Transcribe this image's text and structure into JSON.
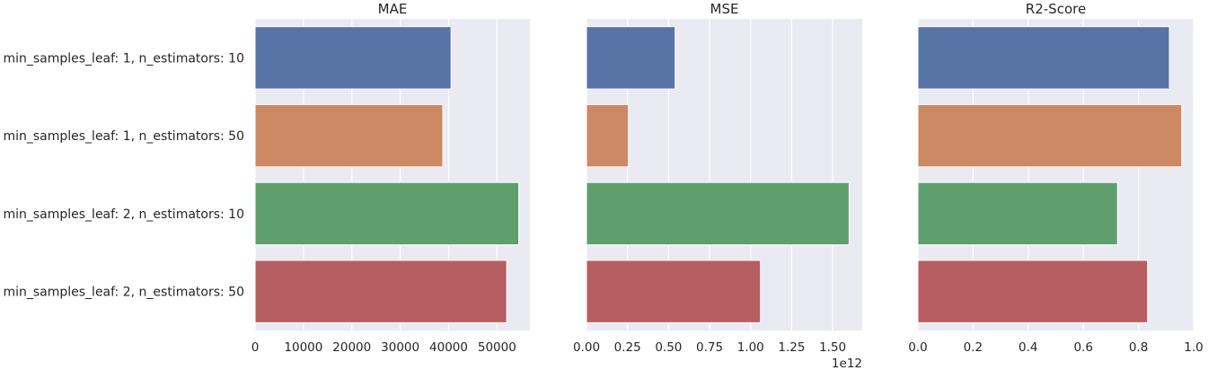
{
  "chart_data": [
    {
      "type": "bar",
      "orientation": "horizontal",
      "title": "MAE",
      "xlabel": "",
      "ylabel": "",
      "categories": [
        "min_samples_leaf: 1, n_estimators: 10",
        "min_samples_leaf: 1, n_estimators: 50",
        "min_samples_leaf: 2, n_estimators: 10",
        "min_samples_leaf: 2, n_estimators: 50"
      ],
      "values": [
        40500,
        38800,
        54500,
        52000
      ],
      "xlim": [
        0,
        56800
      ],
      "xticks": [
        0,
        10000,
        20000,
        30000,
        40000,
        50000
      ],
      "xtick_labels": [
        "0",
        "10000",
        "20000",
        "30000",
        "40000",
        "50000"
      ],
      "offset_text": "",
      "grid": true
    },
    {
      "type": "bar",
      "orientation": "horizontal",
      "title": "MSE",
      "xlabel": "",
      "ylabel": "",
      "categories": [
        "min_samples_leaf: 1, n_estimators: 10",
        "min_samples_leaf: 1, n_estimators: 50",
        "min_samples_leaf: 2, n_estimators: 10",
        "min_samples_leaf: 2, n_estimators: 50"
      ],
      "values": [
        540000000000,
        255000000000,
        1600000000000,
        1060000000000
      ],
      "xlim": [
        0,
        1680000000000
      ],
      "xticks": [
        0,
        250000000000,
        500000000000,
        750000000000,
        1000000000000,
        1250000000000,
        1500000000000
      ],
      "xtick_labels": [
        "0.00",
        "0.25",
        "0.50",
        "0.75",
        "1.00",
        "1.25",
        "1.50"
      ],
      "offset_text": "1e12",
      "grid": true
    },
    {
      "type": "bar",
      "orientation": "horizontal",
      "title": "R2-Score",
      "xlabel": "",
      "ylabel": "",
      "categories": [
        "min_samples_leaf: 1, n_estimators: 10",
        "min_samples_leaf: 1, n_estimators: 50",
        "min_samples_leaf: 2, n_estimators: 10",
        "min_samples_leaf: 2, n_estimators: 50"
      ],
      "values": [
        0.912,
        0.957,
        0.724,
        0.833
      ],
      "xlim": [
        0,
        1.0
      ],
      "xticks": [
        0,
        0.2,
        0.4,
        0.6,
        0.8,
        1.0
      ],
      "xtick_labels": [
        "0.0",
        "0.2",
        "0.4",
        "0.6",
        "0.8",
        "1.0"
      ],
      "offset_text": "",
      "grid": true
    }
  ],
  "colors": {
    "bars": [
      "#5873a5",
      "#cd8864",
      "#5f9f6e",
      "#b75e62"
    ],
    "plot_background": "#eaeaf2",
    "grid": "#ffffff",
    "text": "#262626"
  }
}
